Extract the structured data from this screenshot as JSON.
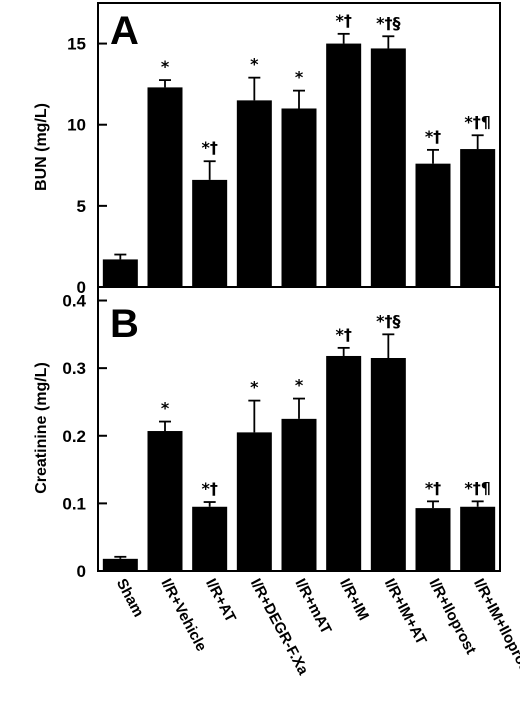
{
  "chart_data": [
    {
      "type": "bar",
      "panel_label": "A",
      "ylabel": "BUN (mg/L)",
      "ylim": [
        0,
        17.5
      ],
      "yticks": [
        0,
        5,
        10,
        15
      ],
      "categories": [
        "Sham",
        "I/R+Vehicle",
        "I/R+AT",
        "I/R+DEGR-F.Xa",
        "I/R+mAT",
        "I/R+IM",
        "I/R+IM+AT",
        "I/R+Iloprost",
        "I/R+IM+Iloprost"
      ],
      "values": [
        1.7,
        12.3,
        6.6,
        11.5,
        11.0,
        15.0,
        14.7,
        7.6,
        8.5
      ],
      "errors": [
        0.3,
        0.45,
        1.15,
        1.4,
        1.1,
        0.6,
        0.75,
        0.85,
        0.85
      ],
      "annotations": [
        "",
        "*",
        "*†",
        "*",
        "*",
        "*†",
        "*†§",
        "*†",
        "*†¶"
      ]
    },
    {
      "type": "bar",
      "panel_label": "B",
      "ylabel": "Creatinine (mg/L)",
      "ylim": [
        0,
        0.42
      ],
      "yticks": [
        0,
        0.1,
        0.2,
        0.3,
        0.4
      ],
      "ytick_labels": [
        "0",
        "0.1",
        "0.2",
        "0.3",
        "0.4"
      ],
      "categories": [
        "Sham",
        "I/R+Vehicle",
        "I/R+AT",
        "I/R+DEGR-F.Xa",
        "I/R+mAT",
        "I/R+IM",
        "I/R+IM+AT",
        "I/R+Iloprost",
        "I/R+IM+Iloprost"
      ],
      "values": [
        0.018,
        0.207,
        0.095,
        0.205,
        0.225,
        0.318,
        0.315,
        0.093,
        0.095
      ],
      "errors": [
        0.003,
        0.014,
        0.007,
        0.047,
        0.03,
        0.012,
        0.035,
        0.01,
        0.008
      ],
      "annotations": [
        "",
        "*",
        "*†",
        "*",
        "*",
        "*†",
        "*†§",
        "*†",
        "*†¶"
      ]
    }
  ]
}
